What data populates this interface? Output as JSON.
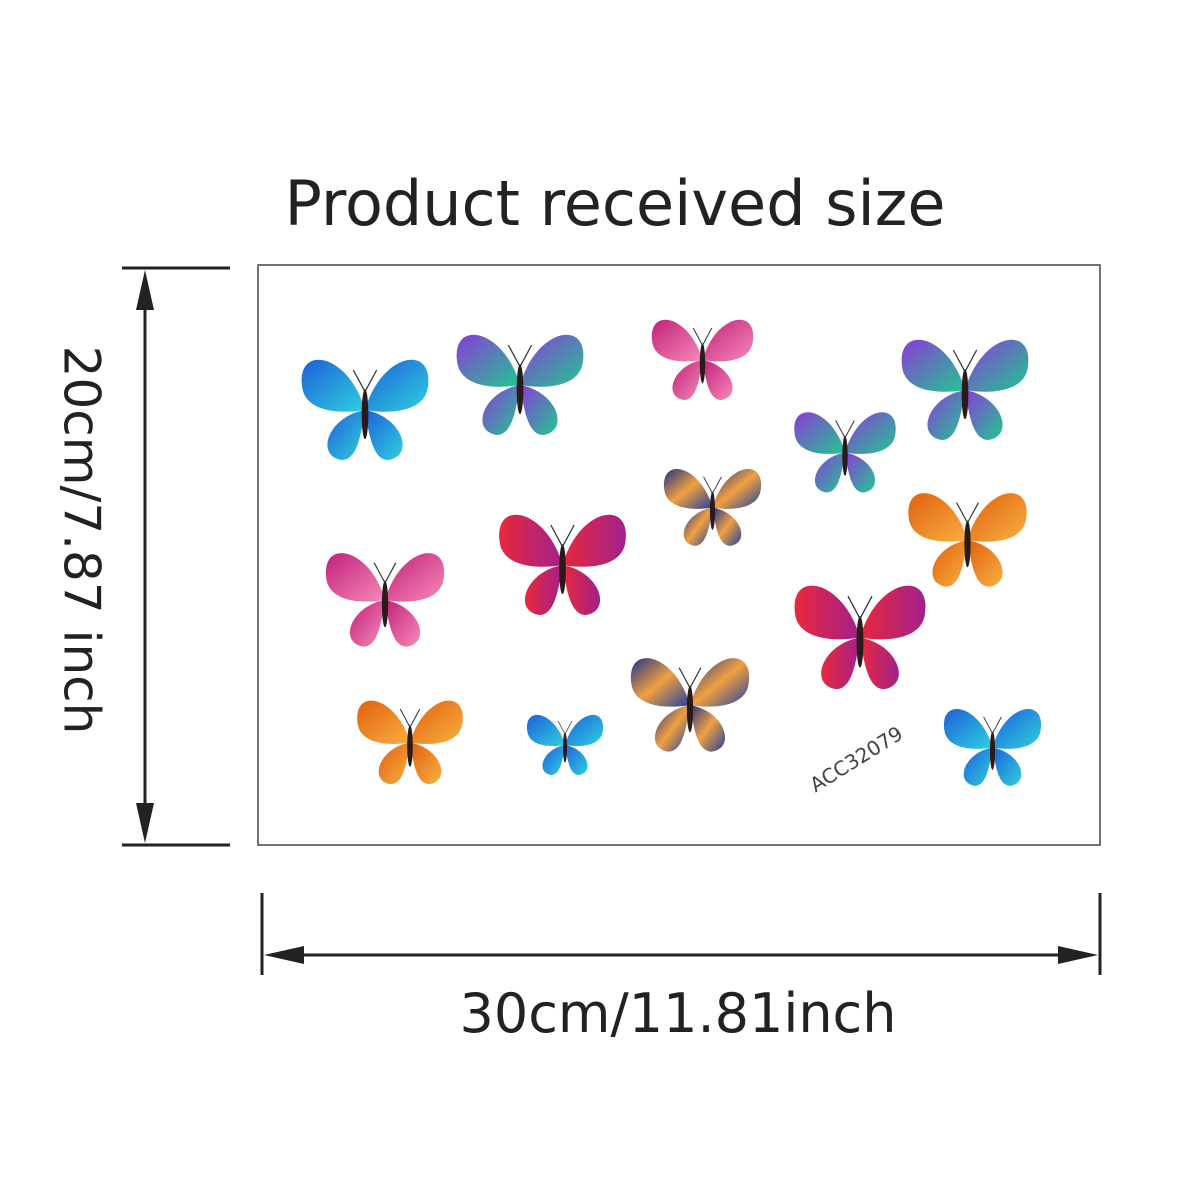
{
  "title": "Product received size",
  "height_label": "20cm/7.87 inch",
  "width_label": "30cm/11.81inch",
  "sheet": {
    "code": "ACC32079"
  }
}
